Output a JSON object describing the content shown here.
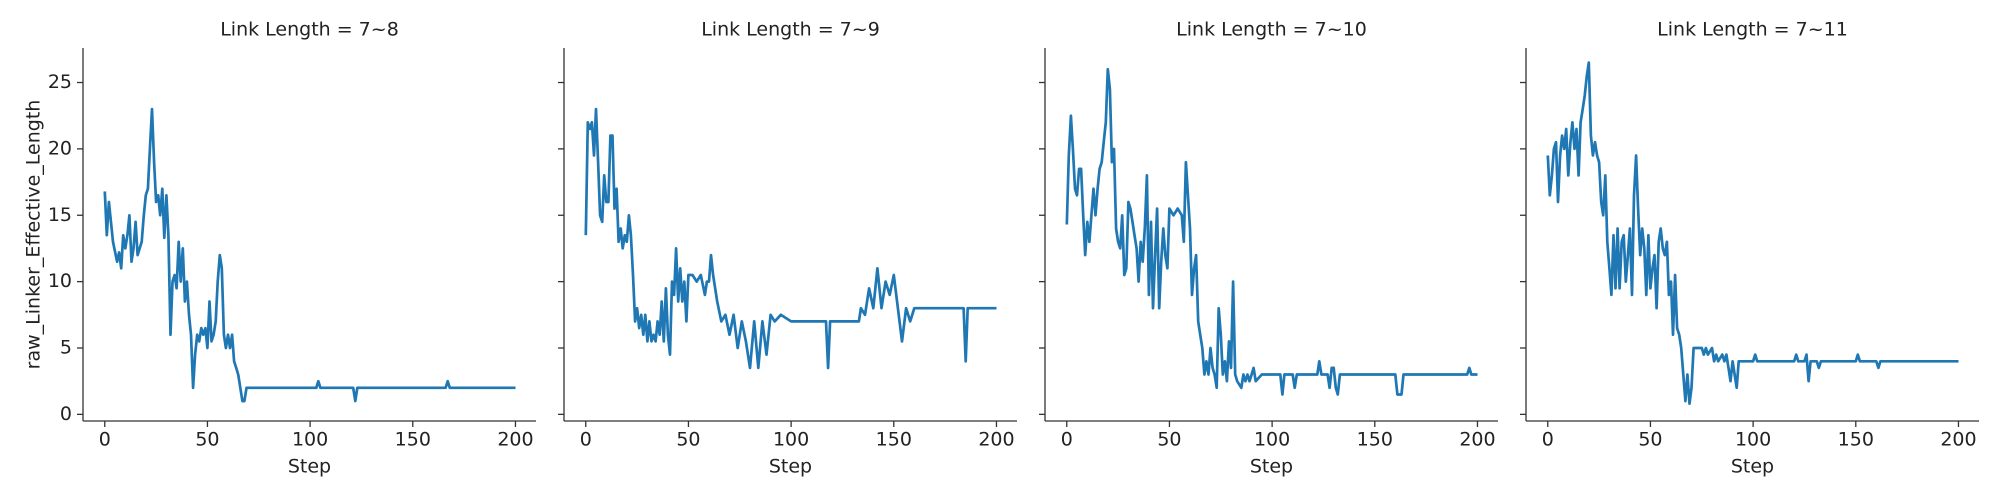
{
  "chart_data": [
    {
      "type": "line",
      "title": "Link Length = 7~8",
      "y_label": "raw_Linker_Effective_Length",
      "x_label": "Step",
      "xlim": [
        -10.6,
        210
      ],
      "ylim": [
        -0.5,
        27.6
      ],
      "xticks": [
        0,
        50,
        100,
        150,
        200
      ],
      "yticks": [
        0,
        5,
        10,
        15,
        20,
        25
      ],
      "color": "#1f77b4",
      "x": [
        0,
        1,
        2,
        4,
        6,
        7,
        8,
        9,
        10,
        11,
        12,
        13,
        14,
        15,
        16,
        18,
        19,
        20,
        21,
        22,
        23,
        24,
        25,
        26,
        27,
        28,
        29,
        30,
        31,
        32,
        33,
        34,
        35,
        36,
        37,
        38,
        39,
        40,
        41,
        42,
        43,
        44,
        45,
        46,
        47,
        48,
        49,
        50,
        51,
        52,
        53,
        54,
        55,
        56,
        57,
        58,
        59,
        60,
        61,
        62,
        63,
        64,
        65,
        66,
        67,
        68,
        69,
        103,
        104,
        105,
        121,
        122,
        123,
        166,
        167,
        168,
        200
      ],
      "values": [
        16.8,
        13.5,
        16,
        13,
        11.5,
        12.2,
        11,
        13.5,
        12.5,
        13.5,
        15,
        11.5,
        12.5,
        14.5,
        12,
        13,
        15,
        16.5,
        17,
        20,
        23,
        19,
        16,
        16.5,
        15,
        17,
        13.3,
        16.5,
        13.5,
        6,
        10,
        10.5,
        9.5,
        13,
        10,
        12.5,
        8.5,
        10,
        7.5,
        6,
        2,
        4.5,
        6,
        5.5,
        6.5,
        6,
        6.5,
        5,
        8.5,
        5.5,
        6,
        7,
        10,
        12,
        11,
        6,
        5,
        6,
        5,
        6,
        4,
        3.5,
        3,
        2,
        1,
        1,
        2,
        2,
        2.5,
        2,
        2,
        1,
        2,
        2,
        2.5,
        2,
        2
      ]
    },
    {
      "type": "line",
      "title": "Link Length = 7~9",
      "x_label": "Step",
      "xlim": [
        -10.6,
        210
      ],
      "ylim": [
        -0.5,
        27.6
      ],
      "xticks": [
        0,
        50,
        100,
        150,
        200
      ],
      "yticks": [
        0,
        5,
        10,
        15,
        20,
        25
      ],
      "color": "#1f77b4",
      "x": [
        0,
        1,
        2,
        3,
        4,
        5,
        6,
        7,
        8,
        9,
        10,
        11,
        12,
        13,
        14,
        15,
        16,
        17,
        18,
        19,
        20,
        21,
        22,
        23,
        24,
        25,
        26,
        27,
        28,
        29,
        30,
        31,
        32,
        33,
        34,
        35,
        36,
        37,
        38,
        39,
        40,
        41,
        42,
        43,
        44,
        45,
        46,
        47,
        48,
        49,
        50,
        52,
        54,
        56,
        58,
        59,
        60,
        61,
        62,
        64,
        66,
        68,
        70,
        72,
        74,
        76,
        78,
        80,
        82,
        84,
        86,
        88,
        90,
        92,
        95,
        100,
        117,
        118,
        119,
        133,
        134,
        136,
        138,
        140,
        142,
        144,
        146,
        148,
        150,
        152,
        154,
        156,
        158,
        160,
        184,
        185,
        186,
        200
      ],
      "values": [
        13.5,
        22,
        21.5,
        22,
        19.5,
        23,
        19,
        15,
        14.5,
        18,
        16,
        16,
        21,
        21,
        15.5,
        17,
        13,
        14,
        12.5,
        13.5,
        13,
        15,
        13.5,
        10.5,
        7,
        8,
        6.5,
        7.5,
        6,
        7.5,
        5.5,
        7,
        5.5,
        6,
        5.5,
        7,
        6,
        8.5,
        5.5,
        9.5,
        6,
        4.5,
        10,
        9,
        12.5,
        8.5,
        11,
        8.5,
        10,
        7,
        10.5,
        10.5,
        10,
        10.5,
        9,
        10,
        10,
        12,
        10.5,
        8.5,
        7,
        7.5,
        6,
        7.5,
        5,
        7,
        5.5,
        3.5,
        7,
        3.5,
        7,
        4.5,
        7.5,
        7,
        7.5,
        7,
        7,
        3.5,
        7,
        7,
        8,
        7.5,
        9.5,
        8,
        11,
        8,
        10,
        9,
        10.5,
        8,
        5.5,
        8,
        7,
        8,
        8,
        4,
        8,
        8
      ]
    },
    {
      "type": "line",
      "title": "Link Length = 7~10",
      "x_label": "Step",
      "xlim": [
        -10.6,
        210
      ],
      "ylim": [
        -0.5,
        27.6
      ],
      "xticks": [
        0,
        50,
        100,
        150,
        200
      ],
      "yticks": [
        0,
        5,
        10,
        15,
        20,
        25
      ],
      "color": "#1f77b4",
      "x": [
        0,
        1,
        2,
        3,
        4,
        5,
        6,
        7,
        8,
        9,
        10,
        11,
        12,
        13,
        14,
        15,
        16,
        17,
        18,
        19,
        20,
        21,
        22,
        23,
        24,
        25,
        26,
        27,
        28,
        29,
        30,
        31,
        32,
        33,
        34,
        35,
        36,
        37,
        38,
        39,
        40,
        41,
        42,
        43,
        44,
        45,
        46,
        47,
        48,
        49,
        50,
        52,
        54,
        56,
        57,
        58,
        60,
        61,
        62,
        63,
        64,
        65,
        66,
        67,
        68,
        69,
        70,
        71,
        72,
        73,
        74,
        75,
        76,
        77,
        78,
        79,
        80,
        81,
        82,
        83,
        85,
        86,
        87,
        88,
        89,
        90,
        91,
        92,
        95,
        100,
        104,
        105,
        106,
        110,
        111,
        112,
        122,
        123,
        124,
        127,
        128,
        129,
        130,
        131,
        132,
        133,
        160,
        161,
        163,
        164,
        195,
        196,
        197,
        200
      ],
      "values": [
        14.3,
        19.5,
        22.5,
        20,
        17,
        16.5,
        18.5,
        18.5,
        15,
        12,
        14.5,
        13,
        15,
        17,
        15,
        17,
        18.5,
        19,
        20.5,
        22,
        26,
        24.5,
        19,
        20,
        14,
        13,
        12.5,
        15,
        10.5,
        11,
        16,
        15.5,
        14.5,
        13.5,
        12.5,
        10,
        13,
        11.5,
        14,
        18,
        9,
        14.5,
        8,
        12,
        15.5,
        8,
        11.5,
        14,
        12,
        11,
        15.5,
        15,
        15.5,
        15,
        13,
        19,
        14,
        9,
        11,
        12,
        7,
        6,
        5,
        3,
        4,
        3,
        5,
        3.5,
        3,
        2,
        8,
        6,
        3,
        4,
        2.5,
        5.5,
        3.5,
        10,
        3,
        2.5,
        2,
        3,
        2.5,
        3,
        2.5,
        3,
        3.5,
        2.5,
        3,
        3,
        3,
        1.5,
        3,
        3,
        2,
        3,
        3,
        4,
        3,
        3,
        2,
        3.5,
        3.5,
        2,
        1.5,
        3,
        3,
        1.5,
        1.5,
        3,
        3,
        3.5,
        3,
        3
      ]
    },
    {
      "type": "line",
      "title": "Link Length = 7~11",
      "x_label": "Step",
      "xlim": [
        -10.6,
        210
      ],
      "ylim": [
        -0.5,
        27.6
      ],
      "xticks": [
        0,
        50,
        100,
        150,
        200
      ],
      "yticks": [
        0,
        5,
        10,
        15,
        20,
        25
      ],
      "color": "#1f77b4",
      "x": [
        0,
        1,
        2,
        3,
        4,
        5,
        6,
        7,
        8,
        9,
        10,
        11,
        12,
        13,
        14,
        15,
        16,
        17,
        18,
        19,
        20,
        21,
        22,
        23,
        24,
        25,
        26,
        27,
        28,
        29,
        30,
        31,
        32,
        33,
        34,
        35,
        36,
        37,
        38,
        39,
        40,
        41,
        42,
        43,
        44,
        45,
        46,
        47,
        48,
        49,
        50,
        51,
        52,
        53,
        54,
        55,
        56,
        57,
        58,
        59,
        60,
        61,
        62,
        63,
        64,
        65,
        66,
        67,
        68,
        69,
        70,
        71,
        75,
        76,
        77,
        78,
        80,
        81,
        82,
        83,
        85,
        86,
        87,
        88,
        89,
        90,
        92,
        93,
        100,
        101,
        102,
        120,
        121,
        122,
        125,
        126,
        127,
        128,
        131,
        132,
        133,
        150,
        151,
        152,
        160,
        161,
        162,
        200
      ],
      "values": [
        19.5,
        16.5,
        18,
        20,
        20.5,
        16,
        19.5,
        21,
        20,
        21.5,
        18,
        20.5,
        22,
        20,
        21.5,
        18,
        22,
        23,
        24,
        25.5,
        26.5,
        21,
        19.5,
        20.5,
        19.5,
        19,
        16,
        15,
        18,
        13,
        11,
        9,
        13.5,
        9.5,
        14,
        9.5,
        13,
        13.5,
        10,
        12,
        14,
        9,
        16.5,
        19.5,
        15.5,
        12,
        14,
        12.5,
        9,
        13.5,
        9.5,
        11,
        12,
        8,
        13,
        14,
        12.5,
        12,
        13,
        9,
        10,
        6,
        10.5,
        6.5,
        6,
        5,
        3,
        1,
        3,
        0.8,
        2,
        5,
        5,
        4.5,
        5,
        4.5,
        5,
        4,
        4.5,
        4,
        4.5,
        4,
        4.5,
        3.5,
        2.5,
        4,
        2,
        4,
        4,
        4.5,
        4,
        4,
        4.5,
        4,
        4,
        4.5,
        2.5,
        4,
        4,
        3.5,
        4,
        4,
        4.5,
        4,
        4,
        3.5,
        4,
        4
      ]
    }
  ]
}
